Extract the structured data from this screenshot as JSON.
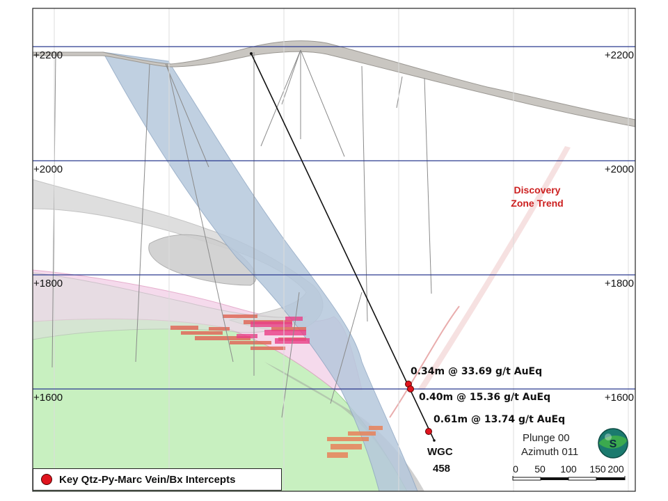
{
  "elevations": {
    "left": [
      "+2200",
      "+2000",
      "+1800",
      "+1600"
    ],
    "right": [
      "+2200",
      "+2000",
      "+1800",
      "+1600"
    ]
  },
  "zone_label": {
    "line1": "Discovery",
    "line2": "Zone Trend",
    "color": "#cc1f1f"
  },
  "intercepts": [
    "0.34m @ 33.69 g/t AuEq",
    "0.40m @ 15.36 g/t AuEq",
    "0.61m @ 13.74 g/t AuEq"
  ],
  "hole": {
    "name_line1": "WGC",
    "name_line2": "458"
  },
  "view": {
    "plunge": "Plunge 00",
    "azimuth": "Azimuth 011",
    "compass_letter": "S"
  },
  "scale_bar": {
    "ticks": [
      "0",
      "50",
      "100",
      "150",
      "200"
    ]
  },
  "legend": {
    "label": "Key Qtz-Py-Marc Vein/Bx Intercepts",
    "marker_color": "#e0141e"
  },
  "colors": {
    "elevation_lines": "#2b3a8f",
    "blue_vein": "#b6c8dc",
    "pink_zone": "#f4d6ea",
    "green_zone": "#c8f0c0",
    "grey_layer": "#d4d4d4"
  }
}
